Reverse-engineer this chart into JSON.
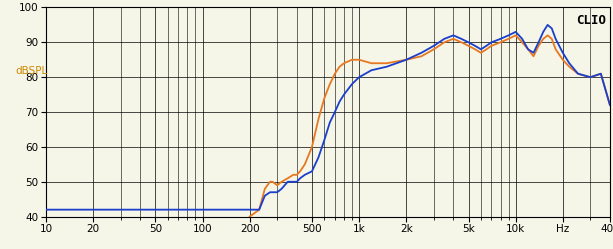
{
  "title": "CLIO",
  "ylabel": "dBSPL",
  "xmin": 10,
  "xmax": 40000,
  "ymin": 40,
  "ymax": 100,
  "yticks": [
    40,
    50,
    60,
    70,
    80,
    90,
    100
  ],
  "xtick_values": [
    10,
    20,
    50,
    100,
    200,
    500,
    1000,
    2000,
    5000,
    10000,
    20000,
    40000
  ],
  "xtick_labels": [
    "10",
    "20",
    "50",
    "100",
    "200",
    "500",
    "1k",
    "2k",
    "5k",
    "10k",
    "Hz",
    "40k"
  ],
  "bg_color": "#f5f5e8",
  "grid_color": "#000000",
  "blue_color": "#1a3fcc",
  "orange_color": "#e87820",
  "blue_data": [
    [
      10,
      42
    ],
    [
      100,
      42
    ],
    [
      200,
      42
    ],
    [
      230,
      42
    ],
    [
      250,
      46
    ],
    [
      270,
      47
    ],
    [
      300,
      47
    ],
    [
      320,
      48
    ],
    [
      350,
      50
    ],
    [
      380,
      50
    ],
    [
      400,
      50
    ],
    [
      420,
      51
    ],
    [
      450,
      52
    ],
    [
      500,
      53
    ],
    [
      550,
      57
    ],
    [
      600,
      62
    ],
    [
      650,
      67
    ],
    [
      700,
      70
    ],
    [
      750,
      73
    ],
    [
      800,
      75
    ],
    [
      900,
      78
    ],
    [
      1000,
      80
    ],
    [
      1200,
      82
    ],
    [
      1500,
      83
    ],
    [
      2000,
      85
    ],
    [
      2500,
      87
    ],
    [
      3000,
      89
    ],
    [
      3500,
      91
    ],
    [
      4000,
      92
    ],
    [
      4500,
      91
    ],
    [
      5000,
      90
    ],
    [
      5500,
      89
    ],
    [
      6000,
      88
    ],
    [
      6500,
      89
    ],
    [
      7000,
      90
    ],
    [
      8000,
      91
    ],
    [
      9000,
      92
    ],
    [
      10000,
      93
    ],
    [
      11000,
      91
    ],
    [
      12000,
      88
    ],
    [
      13000,
      87
    ],
    [
      14000,
      90
    ],
    [
      15000,
      93
    ],
    [
      16000,
      95
    ],
    [
      17000,
      94
    ],
    [
      18000,
      91
    ],
    [
      20000,
      87
    ],
    [
      22000,
      84
    ],
    [
      25000,
      81
    ],
    [
      30000,
      80
    ],
    [
      35000,
      81
    ],
    [
      40000,
      72
    ]
  ],
  "orange_data": [
    [
      200,
      40
    ],
    [
      230,
      42
    ],
    [
      250,
      48
    ],
    [
      270,
      50
    ],
    [
      280,
      50
    ],
    [
      300,
      49
    ],
    [
      320,
      50
    ],
    [
      350,
      51
    ],
    [
      380,
      52
    ],
    [
      400,
      52
    ],
    [
      420,
      53
    ],
    [
      450,
      55
    ],
    [
      500,
      60
    ],
    [
      550,
      68
    ],
    [
      600,
      74
    ],
    [
      650,
      78
    ],
    [
      700,
      81
    ],
    [
      750,
      83
    ],
    [
      800,
      84
    ],
    [
      900,
      85
    ],
    [
      1000,
      85
    ],
    [
      1200,
      84
    ],
    [
      1500,
      84
    ],
    [
      2000,
      85
    ],
    [
      2500,
      86
    ],
    [
      3000,
      88
    ],
    [
      3500,
      90
    ],
    [
      4000,
      91
    ],
    [
      4500,
      90
    ],
    [
      5000,
      89
    ],
    [
      5500,
      88
    ],
    [
      6000,
      87
    ],
    [
      6500,
      88
    ],
    [
      7000,
      89
    ],
    [
      8000,
      90
    ],
    [
      9000,
      91
    ],
    [
      10000,
      92
    ],
    [
      11000,
      90
    ],
    [
      12000,
      88
    ],
    [
      13000,
      86
    ],
    [
      14000,
      89
    ],
    [
      15000,
      91
    ],
    [
      16000,
      92
    ],
    [
      17000,
      91
    ],
    [
      18000,
      88
    ],
    [
      20000,
      85
    ],
    [
      22000,
      83
    ],
    [
      25000,
      81
    ],
    [
      30000,
      80
    ],
    [
      35000,
      81
    ],
    [
      40000,
      72
    ]
  ]
}
